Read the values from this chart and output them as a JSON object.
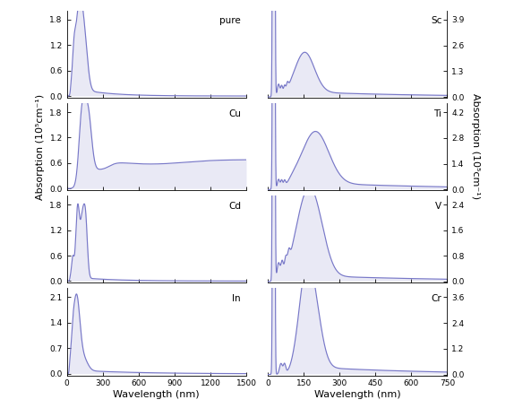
{
  "line_color": "#7878C8",
  "fill_color": "#CACAE8",
  "fill_alpha": 0.4,
  "background_color": "#ffffff",
  "left_xlabel": "Wavelength (nm)",
  "right_xlabel": "Wavelength (nm)",
  "left_ylabel": "Absorption (10⁵cm⁻¹)",
  "right_ylabel": "Absorption (10⁵cm⁻¹)",
  "panels_left": [
    "pure",
    "Cu",
    "Cd",
    "In"
  ],
  "panels_right": [
    "Sc",
    "Ti",
    "V",
    "Cr"
  ],
  "left_xlim": [
    0,
    1500
  ],
  "right_xlim": [
    0,
    750
  ],
  "left_xticks": [
    0,
    300,
    600,
    900,
    1200,
    1500
  ],
  "right_xticks": [
    0,
    150,
    300,
    450,
    600,
    750
  ],
  "yticks_left": {
    "pure": [
      0.0,
      0.6,
      1.2,
      1.8
    ],
    "Cu": [
      0.0,
      0.6,
      1.2,
      1.8
    ],
    "Cd": [
      0.0,
      0.6,
      1.2,
      1.8
    ],
    "In": [
      0.0,
      0.7,
      1.4,
      2.1
    ]
  },
  "yticks_right": {
    "Sc": [
      0.0,
      1.3,
      2.6,
      3.9
    ],
    "Ti": [
      0.0,
      1.4,
      2.8,
      4.2
    ],
    "V": [
      0.0,
      0.8,
      1.6,
      2.4
    ],
    "Cr": [
      0.0,
      1.2,
      2.4,
      3.6
    ]
  }
}
